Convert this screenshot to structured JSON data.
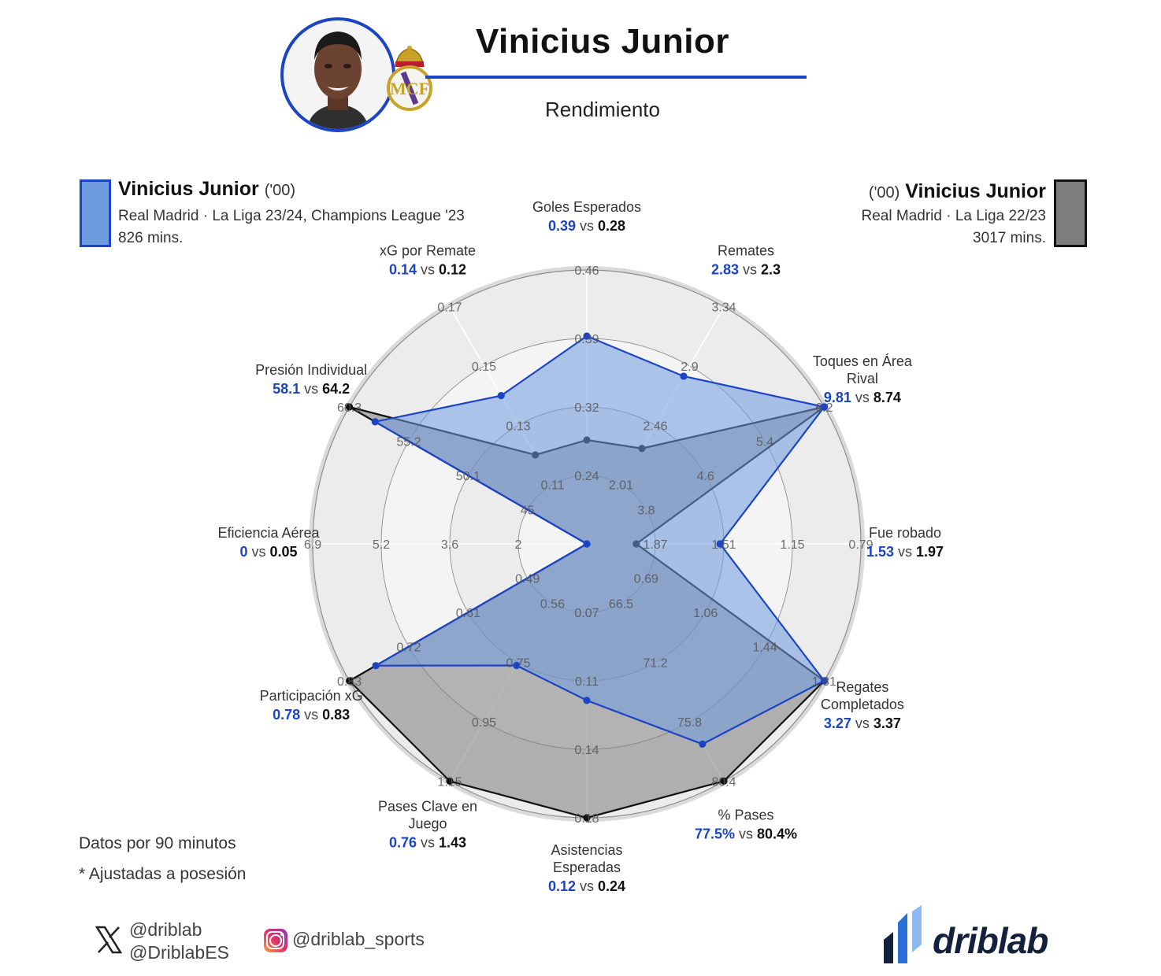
{
  "header": {
    "title": "Vinicius Junior",
    "subtitle": "Rendimiento"
  },
  "legend": {
    "player_a": {
      "name": "Vinicius Junior",
      "age": "('00)",
      "line1": "Real Madrid · La Liga 23/24, Champions League '23",
      "line2": "826 mins.",
      "color": "#1b45c5",
      "fill": "#6f9be0"
    },
    "player_b": {
      "name": "Vinicius Junior",
      "age": "('00)",
      "line1": "Real Madrid · La Liga 22/23",
      "line2": "3017 mins.",
      "color": "#111111",
      "fill": "#7d7d7d"
    }
  },
  "notes": {
    "per90": "Datos por 90 minutos",
    "possession": "* Ajustadas a posesión"
  },
  "footer": {
    "twitter_1": "@driblab",
    "twitter_2": "@DriblabES",
    "instagram": "@driblab_sports",
    "brand": "driblab"
  },
  "chart_data": {
    "type": "radar",
    "vs_word": "vs",
    "series": [
      {
        "name": "Vinicius Junior ('00) · Real Madrid · La Liga 23/24, Champions League '23",
        "color": "#1b45c5"
      },
      {
        "name": "Vinicius Junior ('00) · Real Madrid · La Liga 22/23",
        "color": "#111111"
      }
    ],
    "axes": [
      {
        "label": [
          "Goles Esperados"
        ],
        "a": 0.39,
        "b": 0.28,
        "a_label": "0.39",
        "b_label": "0.28",
        "range": [
          0.17,
          0.46
        ],
        "ticks": [
          "0.24",
          "0.32",
          "0.39",
          "0.46"
        ]
      },
      {
        "label": [
          "Remates"
        ],
        "a": 2.83,
        "b": 2.3,
        "a_label": "2.83",
        "b_label": "2.3",
        "range": [
          1.6,
          3.34
        ],
        "ticks": [
          "2.01",
          "2.46",
          "2.9",
          "3.34"
        ]
      },
      {
        "label": [
          "Toques en Área",
          "Rival"
        ],
        "a": 9.81,
        "b": 8.74,
        "a_label": "9.81",
        "b_label": "8.74",
        "range": [
          3.0,
          6.2
        ],
        "ticks": [
          "3.8",
          "4.6",
          "5.4",
          "6.2"
        ]
      },
      {
        "label": [
          "Fue robado"
        ],
        "a": 1.53,
        "b": 1.97,
        "a_label": "1.53",
        "b_label": "1.97",
        "range": [
          2.23,
          0.79
        ],
        "ticks": [
          "1.87",
          "1.51",
          "1.15",
          "0.79"
        ]
      },
      {
        "label": [
          "Regates",
          "Completados"
        ],
        "a": 3.27,
        "b": 3.37,
        "a_label": "3.27",
        "b_label": "3.37",
        "range": [
          0.31,
          1.81
        ],
        "ticks": [
          "0.69",
          "1.06",
          "1.44",
          "1.81"
        ]
      },
      {
        "label": [
          "% Pases"
        ],
        "a": 77.5,
        "b": 80.4,
        "a_label": "77.5%",
        "b_label": "80.4%",
        "range": [
          61.8,
          80.4
        ],
        "ticks": [
          "66.5",
          "71.2",
          "75.8",
          "80.4"
        ]
      },
      {
        "label": [
          "Asistencias",
          "Esperadas"
        ],
        "a": 0.12,
        "b": 0.24,
        "a_label": "0.12",
        "b_label": "0.24",
        "range": [
          0.04,
          0.18
        ],
        "ticks": [
          "0.07",
          "0.11",
          "0.14",
          "0.18"
        ]
      },
      {
        "label": [
          "Pases Clave en",
          "Juego"
        ],
        "a": 0.76,
        "b": 1.43,
        "a_label": "0.76",
        "b_label": "1.43",
        "range": [
          0.35,
          1.15
        ],
        "ticks": [
          "0.56",
          "0.75",
          "0.95",
          "1.15"
        ]
      },
      {
        "label": [
          "Participación xG"
        ],
        "a": 0.78,
        "b": 0.83,
        "a_label": "0.78",
        "b_label": "0.83",
        "range": [
          0.38,
          0.83
        ],
        "ticks": [
          "0.49",
          "0.61",
          "0.72",
          "0.83"
        ]
      },
      {
        "label": [
          "Eficiencia Aérea"
        ],
        "a": 0,
        "b": 0.05,
        "a_label": "0",
        "b_label": "0.05",
        "range": [
          0.4,
          6.9
        ],
        "ticks": [
          "2",
          "3.6",
          "5.2",
          "6.9"
        ]
      },
      {
        "label": [
          "Presión Individual"
        ],
        "a": 58.1,
        "b": 64.2,
        "a_label": "58.1",
        "b_label": "64.2",
        "range": [
          40.0,
          60.3
        ],
        "ticks": [
          "45",
          "50.1",
          "55.2",
          "60.3"
        ]
      },
      {
        "label": [
          "xG por Remate"
        ],
        "a": 0.14,
        "b": 0.12,
        "a_label": "0.14",
        "b_label": "0.12",
        "range": [
          0.09,
          0.17
        ],
        "ticks": [
          "0.11",
          "0.13",
          "0.15",
          "0.17"
        ]
      }
    ]
  }
}
